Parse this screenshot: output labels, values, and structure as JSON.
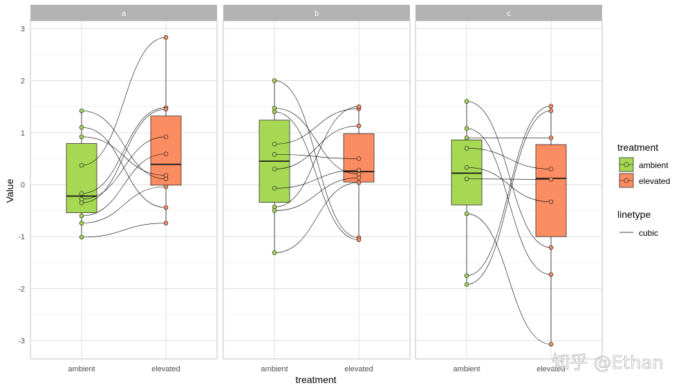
{
  "chart_data": {
    "type": "boxplot-paired-faceted",
    "xlabel": "treatment",
    "ylabel": "Value",
    "ylim": [
      -3.35,
      3.35
    ],
    "y_ticks": [
      -3,
      -2,
      -1,
      0,
      1,
      2,
      3
    ],
    "categories": [
      "ambient",
      "elevated"
    ],
    "colors": {
      "ambient": "#a6d854",
      "elevated": "#fc8d62",
      "strip": "#b3b3b3",
      "line": "#000000"
    },
    "facets": [
      {
        "label": "a",
        "boxes": {
          "ambient": {
            "q1": -0.54,
            "median": -0.22,
            "q3": 0.79,
            "whisker_low": -1.01,
            "whisker_high": 1.42
          },
          "elevated": {
            "q1": -0.01,
            "median": 0.39,
            "q3": 1.32,
            "whisker_low": -0.74,
            "whisker_high": 2.83
          }
        },
        "pairs": [
          {
            "ambient": 1.42,
            "elevated": 0.11
          },
          {
            "ambient": 1.1,
            "elevated": -0.44
          },
          {
            "ambient": 0.92,
            "elevated": 0.18
          },
          {
            "ambient": 0.37,
            "elevated": 2.83
          },
          {
            "ambient": -0.17,
            "elevated": 1.48
          },
          {
            "ambient": -0.28,
            "elevated": 0.92
          },
          {
            "ambient": -0.35,
            "elevated": 1.45
          },
          {
            "ambient": -0.6,
            "elevated": 0.59
          },
          {
            "ambient": -0.74,
            "elevated": -0.04
          },
          {
            "ambient": -1.01,
            "elevated": -0.74
          }
        ]
      },
      {
        "label": "b",
        "boxes": {
          "ambient": {
            "q1": -0.34,
            "median": 0.45,
            "q3": 1.24,
            "whisker_low": -1.31,
            "whisker_high": 2.0
          },
          "elevated": {
            "q1": 0.05,
            "median": 0.25,
            "q3": 0.98,
            "whisker_low": -1.06,
            "whisker_high": 1.5
          }
        },
        "pairs": [
          {
            "ambient": 2.0,
            "elevated": -1.02
          },
          {
            "ambient": 1.47,
            "elevated": 0.2
          },
          {
            "ambient": 1.4,
            "elevated": -1.06
          },
          {
            "ambient": 0.78,
            "elevated": 1.46
          },
          {
            "ambient": 0.58,
            "elevated": 0.5
          },
          {
            "ambient": 0.3,
            "elevated": 1.13
          },
          {
            "ambient": -0.07,
            "elevated": 0.28
          },
          {
            "ambient": -0.43,
            "elevated": 1.5
          },
          {
            "ambient": -0.5,
            "elevated": 0.13
          },
          {
            "ambient": -1.31,
            "elevated": 0.04
          }
        ]
      },
      {
        "label": "c",
        "boxes": {
          "ambient": {
            "q1": -0.39,
            "median": 0.22,
            "q3": 0.86,
            "whisker_low": -1.92,
            "whisker_high": 1.6
          },
          "elevated": {
            "q1": -1.0,
            "median": 0.12,
            "q3": 0.77,
            "whisker_low": -3.07,
            "whisker_high": 1.51
          }
        },
        "pairs": [
          {
            "ambient": 1.6,
            "elevated": -1.21
          },
          {
            "ambient": 1.08,
            "elevated": -1.73
          },
          {
            "ambient": 0.9,
            "elevated": 0.9
          },
          {
            "ambient": 0.7,
            "elevated": 0.3
          },
          {
            "ambient": 0.33,
            "elevated": -0.33
          },
          {
            "ambient": 0.11,
            "elevated": 0.1
          },
          {
            "ambient": -0.56,
            "elevated": -3.07
          },
          {
            "ambient": -1.75,
            "elevated": 1.51
          },
          {
            "ambient": -1.92,
            "elevated": 1.42
          }
        ]
      }
    ],
    "legend": {
      "placement": "right",
      "fill_title": "treatment",
      "fill_items": [
        "ambient",
        "elevated"
      ],
      "linetype_title": "linetype",
      "linetype_items": [
        "cubic"
      ]
    }
  },
  "watermark": "知乎 @Ethan"
}
